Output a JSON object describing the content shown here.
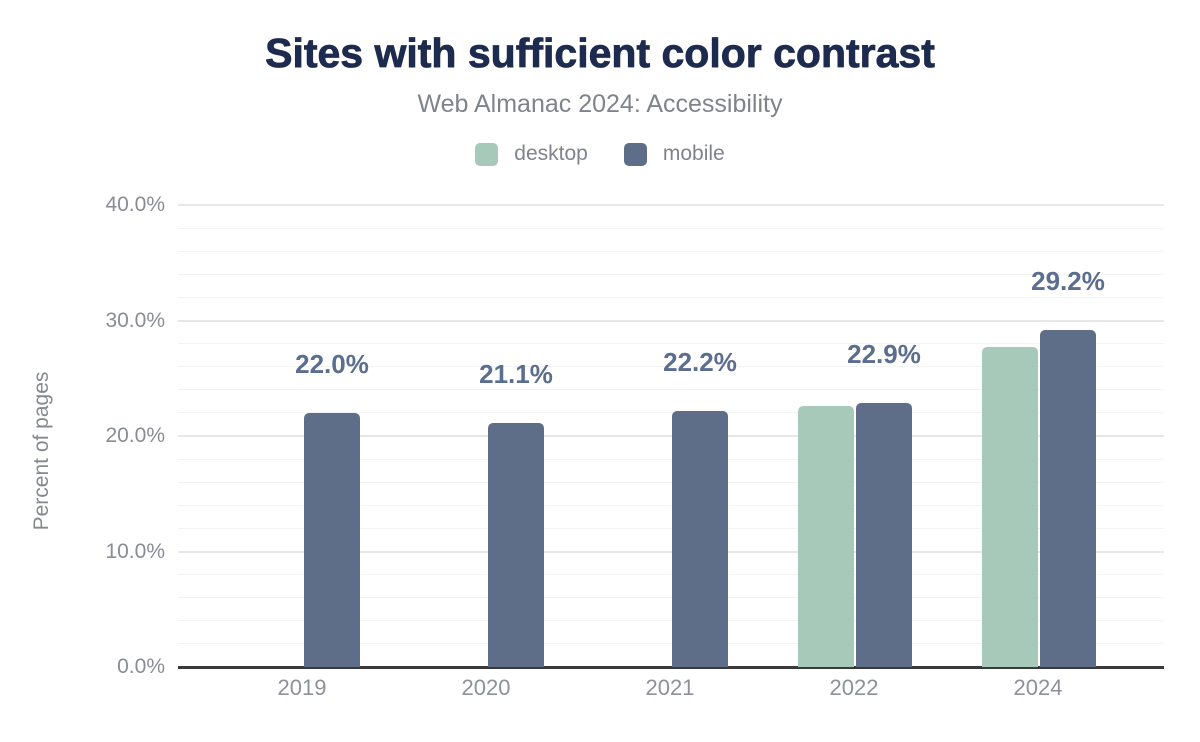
{
  "header": {
    "title": "Sites with sufficient color contrast",
    "subtitle": "Web Almanac 2024: Accessibility"
  },
  "legend": [
    {
      "label": "desktop",
      "color": "#a6c9b9"
    },
    {
      "label": "mobile",
      "color": "#5f6e88"
    }
  ],
  "chart_data": {
    "type": "bar",
    "title": "Sites with sufficient color contrast",
    "subtitle": "Web Almanac 2024: Accessibility",
    "categories": [
      "2019",
      "2020",
      "2021",
      "2022",
      "2024"
    ],
    "series": [
      {
        "name": "desktop",
        "color": "#a6c9b9",
        "values": [
          null,
          null,
          null,
          22.6,
          27.7
        ]
      },
      {
        "name": "mobile",
        "color": "#5f6e88",
        "values": [
          22.0,
          21.1,
          22.2,
          22.9,
          29.2
        ]
      }
    ],
    "data_labels": [
      "22.0%",
      "21.1%",
      "22.2%",
      "22.9%",
      "29.2%"
    ],
    "xlabel": "",
    "ylabel": "Percent of pages",
    "ylim": [
      0,
      40
    ],
    "yticks": [
      "0.0%",
      "10.0%",
      "20.0%",
      "30.0%",
      "40.0%"
    ],
    "ytick_values": [
      0,
      10,
      20,
      30,
      40
    ],
    "minor_grid_step_pct": 2,
    "grid": "horizontal, major every 10% with minor every 2%",
    "legend_position": "top-center",
    "data_label_color": "#5b6e8f",
    "axis_line_color": "#3a3a3a",
    "major_gridline_color": "#e7e7e7",
    "minor_gridline_color": "#f3f3f3",
    "title_color": "#1d2b4e",
    "secondary_text_color": "#7f848c"
  }
}
